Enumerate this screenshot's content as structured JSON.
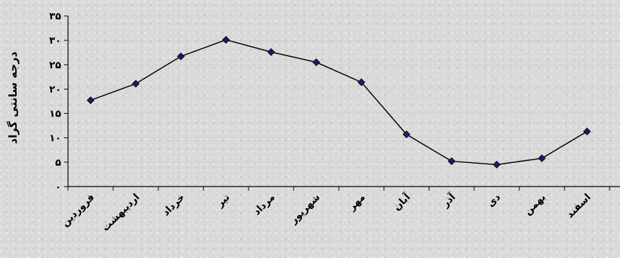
{
  "chart_data": {
    "type": "line",
    "title": "",
    "xlabel": "",
    "ylabel": "درجه سانتی گراد",
    "ylim": [
      0,
      35
    ],
    "yticks": [
      0,
      5,
      10,
      15,
      20,
      25,
      30,
      35
    ],
    "ytick_labels": [
      "۰",
      "۵",
      "۱۰",
      "۱۵",
      "۲۰",
      "۲۵",
      "۳۰",
      "۳۵"
    ],
    "categories": [
      "فروردین",
      "اردیبهشت",
      "خرداد",
      "تیر",
      "مرداد",
      "شهریور",
      "مهر",
      "آبان",
      "آذر",
      "دی",
      "بهمن",
      "اسفند"
    ],
    "series": [
      {
        "name": "",
        "values": [
          17.7,
          21.1,
          26.7,
          30.1,
          27.6,
          25.5,
          21.4,
          10.7,
          5.2,
          4.5,
          5.8,
          11.3
        ],
        "line_color": "#000000",
        "marker_color": "#1a1a6e",
        "marker": "diamond"
      }
    ],
    "grid": true,
    "legend": "none"
  }
}
